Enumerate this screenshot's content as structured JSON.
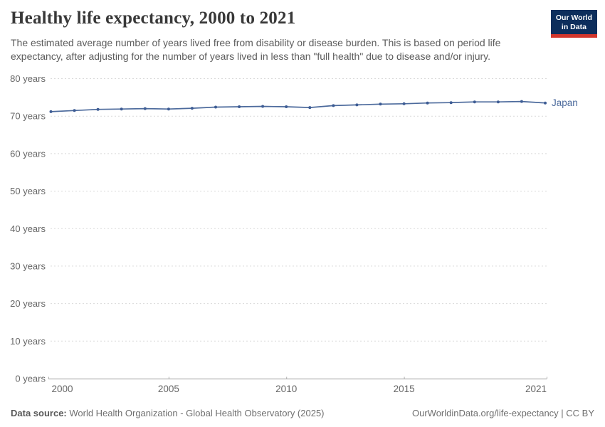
{
  "header": {
    "title": "Healthy life expectancy, 2000 to 2021",
    "subtitle": "The estimated average number of years lived free from disability or disease burden. This is based on period life expectancy, after adjusting for the number of years lived in less than \"full health\" due to disease and/or injury."
  },
  "logo": {
    "line1": "Our World",
    "line2": "in Data",
    "bg_color": "#0d2e5c",
    "accent_color": "#d2362c"
  },
  "chart_data": {
    "type": "line",
    "title": "Healthy life expectancy, 2000 to 2021",
    "xlabel": "",
    "ylabel": "",
    "unit": "years",
    "x": [
      2000,
      2001,
      2002,
      2003,
      2004,
      2005,
      2006,
      2007,
      2008,
      2009,
      2010,
      2011,
      2012,
      2013,
      2014,
      2015,
      2016,
      2017,
      2018,
      2019,
      2020,
      2021
    ],
    "series": [
      {
        "name": "Japan",
        "color": "#4c6a9c",
        "dot_color": "#3d5c94",
        "label_color": "#4c6a9c",
        "values": [
          71.2,
          71.5,
          71.8,
          71.9,
          72.0,
          71.9,
          72.1,
          72.4,
          72.5,
          72.6,
          72.5,
          72.3,
          72.8,
          73.0,
          73.2,
          73.3,
          73.5,
          73.6,
          73.8,
          73.8,
          73.9,
          73.5
        ]
      }
    ],
    "ylim": [
      0,
      80
    ],
    "yticks": [
      0,
      10,
      20,
      30,
      40,
      50,
      60,
      70,
      80
    ],
    "ytick_label_suffix": " years",
    "xticks": [
      2000,
      2005,
      2010,
      2015,
      2021
    ],
    "grid": "horizontal-dashed",
    "legend_position": "end-of-line-label",
    "axis_color": "#9b9b9b",
    "tick_mark_color": "#b0b0b0",
    "gridline_color": "#d9d9d9",
    "tick_label_color": "#666666"
  },
  "footer": {
    "source_label": "Data source:",
    "source_text": " World Health Organization - Global Health Observatory (2025)",
    "right_text": "OurWorldinData.org/life-expectancy | CC BY"
  }
}
